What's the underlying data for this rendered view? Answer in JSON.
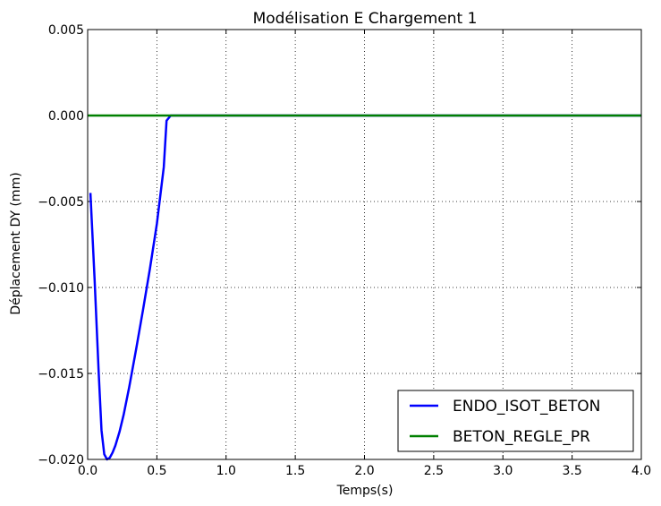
{
  "chart_data": {
    "type": "line",
    "title": "Modélisation E  Chargement 1",
    "xlabel": "Temps(s)",
    "ylabel": "Déplacement DY (mm)",
    "xlim": [
      0.0,
      4.0
    ],
    "ylim": [
      -0.02,
      0.005
    ],
    "x_ticks": [
      0.0,
      0.5,
      1.0,
      1.5,
      2.0,
      2.5,
      3.0,
      3.5,
      4.0
    ],
    "x_tick_labels": [
      "0.0",
      "0.5",
      "1.0",
      "1.5",
      "2.0",
      "2.5",
      "3.0",
      "3.5",
      "4.0"
    ],
    "y_ticks": [
      0.005,
      0.0,
      -0.005,
      -0.01,
      -0.015,
      -0.02
    ],
    "y_tick_labels": [
      "0.005",
      "0.000",
      "−0.005",
      "−0.010",
      "−0.015",
      "−0.020"
    ],
    "grid": true,
    "legend_position": "lower-right",
    "series": [
      {
        "name": "ENDO_ISOT_BETON",
        "color": "#0000ff",
        "points": [
          [
            0.02,
            -0.0045
          ],
          [
            0.05,
            -0.0095
          ],
          [
            0.08,
            -0.015
          ],
          [
            0.1,
            -0.0183
          ],
          [
            0.12,
            -0.0197
          ],
          [
            0.14,
            -0.02
          ],
          [
            0.16,
            -0.0199
          ],
          [
            0.18,
            -0.0196
          ],
          [
            0.2,
            -0.0192
          ],
          [
            0.23,
            -0.0184
          ],
          [
            0.26,
            -0.0174
          ],
          [
            0.3,
            -0.0158
          ],
          [
            0.35,
            -0.0136
          ],
          [
            0.4,
            -0.0113
          ],
          [
            0.45,
            -0.0089
          ],
          [
            0.5,
            -0.0063
          ],
          [
            0.55,
            -0.003
          ],
          [
            0.57,
            -0.0003
          ],
          [
            0.6,
            0.0
          ],
          [
            1.0,
            0.0
          ],
          [
            2.0,
            0.0
          ],
          [
            3.0,
            0.0
          ],
          [
            4.0,
            0.0
          ]
        ]
      },
      {
        "name": "BETON_REGLE_PR",
        "color": "#008000",
        "points": [
          [
            0.0,
            0.0
          ],
          [
            4.0,
            0.0
          ]
        ]
      }
    ]
  }
}
